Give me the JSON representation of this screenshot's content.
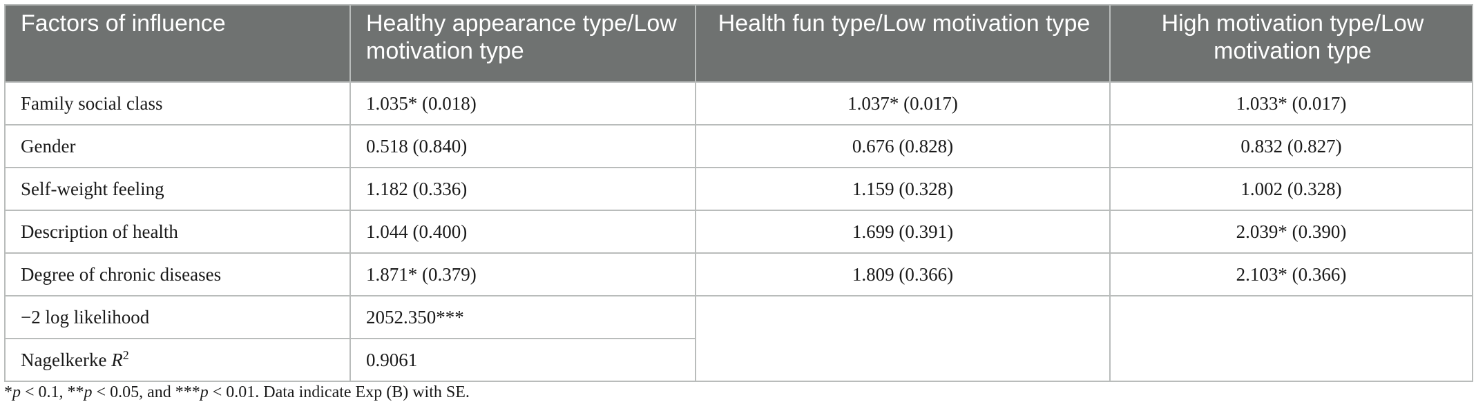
{
  "table": {
    "headers": [
      "Factors of influence",
      "Healthy appearance type/Low motivation type",
      "Health fun type/Low motivation type",
      "High motivation type/Low motivation type"
    ],
    "rows": [
      [
        "Family social class",
        "1.035* (0.018)",
        "1.037* (0.017)",
        "1.033* (0.017)"
      ],
      [
        "Gender",
        "0.518 (0.840)",
        "0.676 (0.828)",
        "0.832 (0.827)"
      ],
      [
        "Self-weight feeling",
        "1.182 (0.336)",
        "1.159 (0.328)",
        "1.002 (0.328)"
      ],
      [
        "Description of health",
        "1.044 (0.400)",
        "1.699 (0.391)",
        "2.039* (0.390)"
      ],
      [
        "Degree of chronic diseases",
        "1.871* (0.379)",
        "1.809 (0.366)",
        "2.103* (0.366)"
      ]
    ],
    "stats": [
      {
        "label": "−2 log likelihood",
        "value": "2052.350***"
      },
      {
        "label_main": "Nagelkerke ",
        "label_italic": "R",
        "label_sup": "2",
        "value": "0.9061"
      }
    ]
  },
  "footnote": {
    "s1": "*",
    "p1": "p",
    "t1": " < 0.1, **",
    "p2": "p",
    "t2": " < 0.05, and ***",
    "p3": "p",
    "t3": " < 0.01. Data indicate Exp (B) with SE."
  }
}
